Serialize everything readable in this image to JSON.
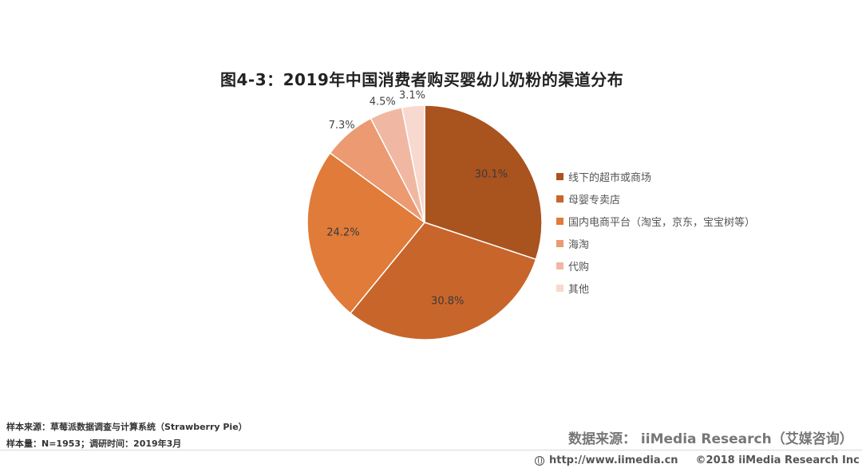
{
  "chart_data": {
    "type": "pie",
    "title": "图4-3：2019年中国消费者购买婴幼儿奶粉的渠道分布",
    "categories": [
      "线下的超市或商场",
      "母婴专卖店",
      "国内电商平台（淘宝，京东，宝宝树等）",
      "海淘",
      "代购",
      "其他"
    ],
    "values": [
      30.1,
      30.8,
      24.2,
      7.3,
      4.5,
      3.1
    ],
    "data_labels": [
      "30.1%",
      "30.8%",
      "24.2%",
      "7.3%",
      "4.5%",
      "3.1%"
    ],
    "colors": [
      "#a9531f",
      "#c8652a",
      "#e07b39",
      "#eb9a72",
      "#f0b8a2",
      "#f7d9cf"
    ],
    "legend_position": "right"
  },
  "sources": {
    "sample_source": "样本来源：草莓派数据调查与计算系统（Strawberry   Pie）",
    "sample_size": "样本量：N=1953；调研时间：2019年3月",
    "data_source": "数据来源：  iiMedia Research（艾媒咨询）"
  },
  "footer": {
    "url": "http://www.iimedia.cn",
    "copyright": "©2018  iiMedia Research  Inc"
  }
}
